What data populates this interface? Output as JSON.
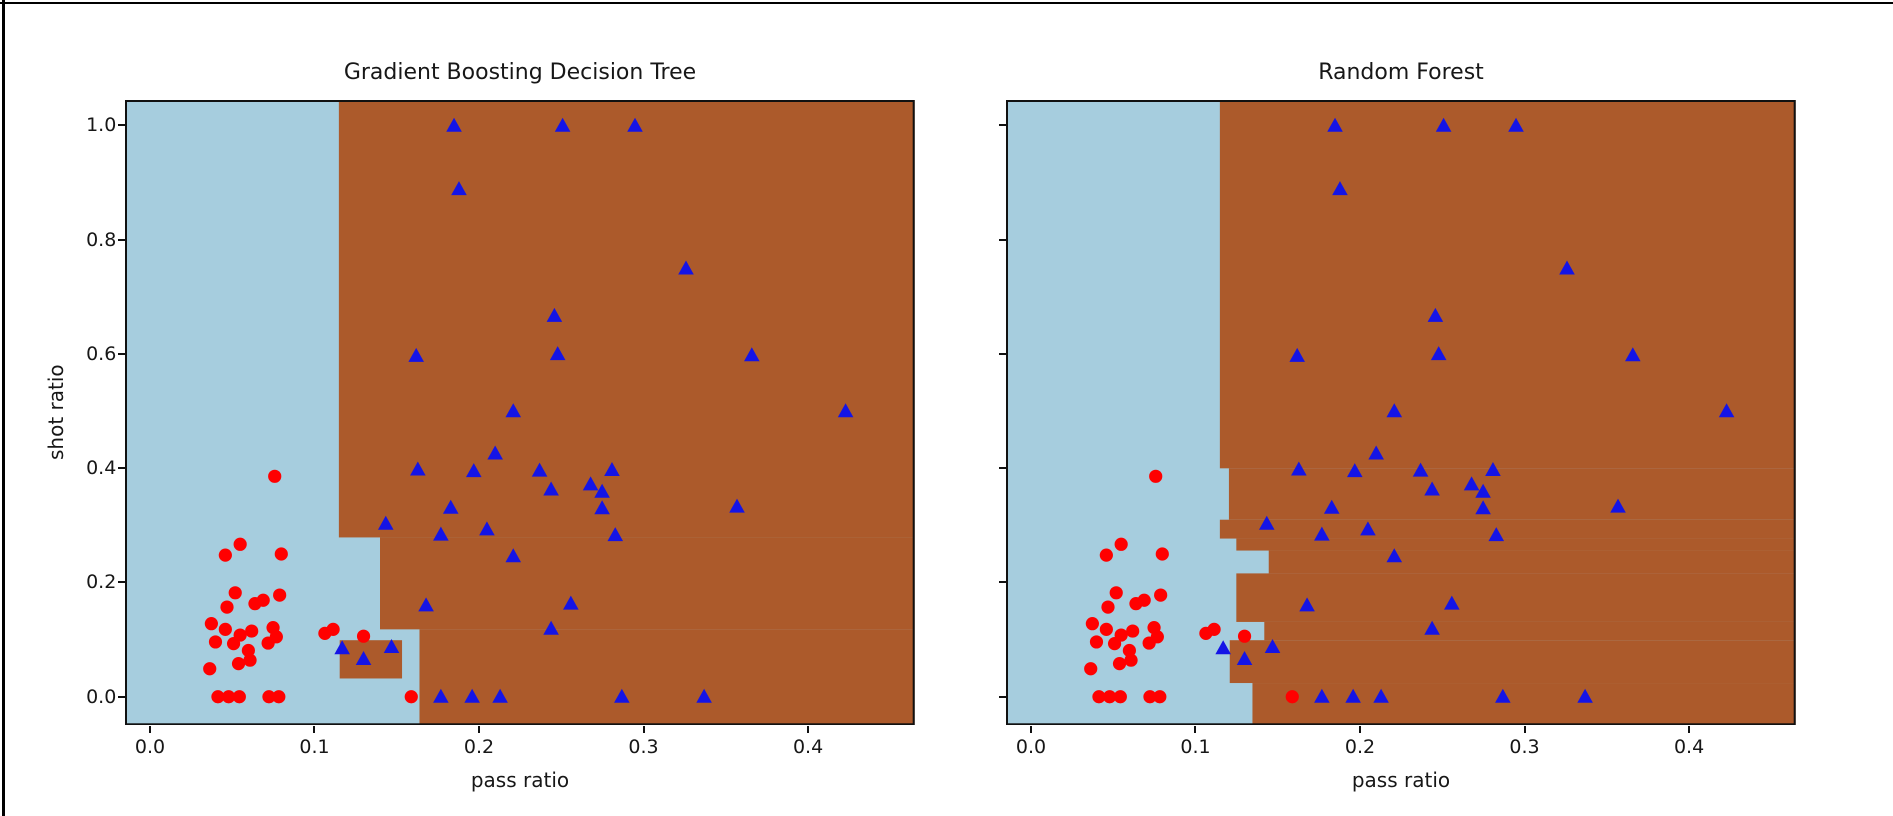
{
  "window": {
    "background": "#ffffff",
    "border_color": "#000000"
  },
  "palette": {
    "region_class0": "#A6CDDE",
    "region_class1": "#AC5A2B",
    "marker_red": "#FF0000",
    "marker_blue": "#1414E6",
    "spine": "#111111",
    "text": "#171717"
  },
  "chart_data": [
    {
      "type": "scatter",
      "title": "Gradient Boosting Decision Tree",
      "xlabel": "pass ratio",
      "ylabel": "shot ratio",
      "xlim": [
        -0.015,
        0.465
      ],
      "ylim": [
        -0.05,
        1.045
      ],
      "grid": false,
      "legend": null,
      "x_tick_values": [
        0.0,
        0.1,
        0.2,
        0.3,
        0.4
      ],
      "x_tick_labels": [
        "0.0",
        "0.1",
        "0.2",
        "0.3",
        "0.4"
      ],
      "y_tick_values": [
        0.0,
        0.2,
        0.4,
        0.6,
        0.8,
        1.0
      ],
      "y_tick_labels": [
        "0.0",
        "0.2",
        "0.4",
        "0.6",
        "0.8",
        "1.0"
      ],
      "show_y_tick_labels": true,
      "background_region_color": "#A6CDDE",
      "positive_region_color": "#AC5A2B",
      "positive_region_rects": [
        {
          "x0": 0.115,
          "y0": 0.279,
          "x1": 0.465,
          "y1": 1.045
        },
        {
          "x0": 0.14,
          "y0": 0.118,
          "x1": 0.465,
          "y1": 0.279
        },
        {
          "x0": 0.164,
          "y0": -0.05,
          "x1": 0.465,
          "y1": 0.118
        },
        {
          "x0": 0.1155,
          "y0": 0.032,
          "x1": 0.1534,
          "y1": 0.099
        }
      ],
      "series": [
        {
          "name": "class-0-red-circles",
          "marker": "circle",
          "color": "#FF0000",
          "points": [
            [
              0.076,
              0.386
            ],
            [
              0.055,
              0.267
            ],
            [
              0.046,
              0.248
            ],
            [
              0.08,
              0.25
            ],
            [
              0.052,
              0.182
            ],
            [
              0.079,
              0.178
            ],
            [
              0.047,
              0.157
            ],
            [
              0.064,
              0.163
            ],
            [
              0.069,
              0.169
            ],
            [
              0.0375,
              0.128
            ],
            [
              0.046,
              0.118
            ],
            [
              0.055,
              0.108
            ],
            [
              0.062,
              0.115
            ],
            [
              0.075,
              0.121
            ],
            [
              0.077,
              0.105
            ],
            [
              0.072,
              0.094
            ],
            [
              0.04,
              0.096
            ],
            [
              0.051,
              0.093
            ],
            [
              0.06,
              0.081
            ],
            [
              0.0365,
              0.049
            ],
            [
              0.054,
              0.058
            ],
            [
              0.061,
              0.064
            ],
            [
              0.1065,
              0.111
            ],
            [
              0.1115,
              0.118
            ],
            [
              0.13,
              0.106
            ],
            [
              0.159,
              0.0
            ],
            [
              0.0415,
              0.0
            ],
            [
              0.048,
              0.0
            ],
            [
              0.0545,
              0.0
            ],
            [
              0.0725,
              0.0
            ],
            [
              0.0785,
              0.0
            ]
          ]
        },
        {
          "name": "class-1-blue-triangles",
          "marker": "triangle-up",
          "color": "#1414E6",
          "points": [
            [
              0.185,
              1.0
            ],
            [
              0.251,
              1.0
            ],
            [
              0.295,
              1.0
            ],
            [
              0.188,
              0.889
            ],
            [
              0.326,
              0.75
            ],
            [
              0.246,
              0.667
            ],
            [
              0.162,
              0.597
            ],
            [
              0.248,
              0.6
            ],
            [
              0.366,
              0.598
            ],
            [
              0.221,
              0.5
            ],
            [
              0.423,
              0.5
            ],
            [
              0.21,
              0.426
            ],
            [
              0.163,
              0.398
            ],
            [
              0.197,
              0.395
            ],
            [
              0.237,
              0.396
            ],
            [
              0.281,
              0.397
            ],
            [
              0.268,
              0.372
            ],
            [
              0.275,
              0.359
            ],
            [
              0.275,
              0.33
            ],
            [
              0.283,
              0.283
            ],
            [
              0.244,
              0.363
            ],
            [
              0.357,
              0.333
            ],
            [
              0.1435,
              0.303
            ],
            [
              0.183,
              0.331
            ],
            [
              0.177,
              0.284
            ],
            [
              0.205,
              0.293
            ],
            [
              0.221,
              0.246
            ],
            [
              0.256,
              0.163
            ],
            [
              0.244,
              0.119
            ],
            [
              0.168,
              0.16
            ],
            [
              0.117,
              0.085
            ],
            [
              0.13,
              0.066
            ],
            [
              0.147,
              0.087
            ],
            [
              0.177,
              0.0
            ],
            [
              0.196,
              0.0
            ],
            [
              0.213,
              0.0
            ],
            [
              0.287,
              0.0
            ],
            [
              0.337,
              0.0
            ]
          ]
        }
      ]
    },
    {
      "type": "scatter",
      "title": "Random Forest",
      "xlabel": "pass ratio",
      "ylabel": "",
      "xlim": [
        -0.015,
        0.465
      ],
      "ylim": [
        -0.05,
        1.045
      ],
      "grid": false,
      "legend": null,
      "x_tick_values": [
        0.0,
        0.1,
        0.2,
        0.3,
        0.4
      ],
      "x_tick_labels": [
        "0.0",
        "0.1",
        "0.2",
        "0.3",
        "0.4"
      ],
      "y_tick_values": [
        0.0,
        0.2,
        0.4,
        0.6,
        0.8,
        1.0
      ],
      "y_tick_labels": [],
      "show_y_tick_labels": false,
      "background_region_color": "#A6CDDE",
      "positive_region_color": "#AC5A2B",
      "positive_region_rects": [
        {
          "x0": 0.115,
          "y0": 0.4,
          "x1": 0.465,
          "y1": 1.045
        },
        {
          "x0": 0.1205,
          "y0": 0.31,
          "x1": 0.465,
          "y1": 0.4
        },
        {
          "x0": 0.115,
          "y0": 0.277,
          "x1": 0.465,
          "y1": 0.31
        },
        {
          "x0": 0.125,
          "y0": 0.256,
          "x1": 0.465,
          "y1": 0.277
        },
        {
          "x0": 0.1447,
          "y0": 0.216,
          "x1": 0.465,
          "y1": 0.256
        },
        {
          "x0": 0.125,
          "y0": 0.131,
          "x1": 0.465,
          "y1": 0.216
        },
        {
          "x0": 0.142,
          "y0": 0.099,
          "x1": 0.465,
          "y1": 0.131
        },
        {
          "x0": 0.121,
          "y0": 0.024,
          "x1": 0.465,
          "y1": 0.099
        },
        {
          "x0": 0.1348,
          "y0": -0.05,
          "x1": 0.465,
          "y1": 0.024
        }
      ],
      "series": [
        {
          "name": "class-0-red-circles",
          "marker": "circle",
          "color": "#FF0000",
          "points": [
            [
              0.076,
              0.386
            ],
            [
              0.055,
              0.267
            ],
            [
              0.046,
              0.248
            ],
            [
              0.08,
              0.25
            ],
            [
              0.052,
              0.182
            ],
            [
              0.079,
              0.178
            ],
            [
              0.047,
              0.157
            ],
            [
              0.064,
              0.163
            ],
            [
              0.069,
              0.169
            ],
            [
              0.0375,
              0.128
            ],
            [
              0.046,
              0.118
            ],
            [
              0.055,
              0.108
            ],
            [
              0.062,
              0.115
            ],
            [
              0.075,
              0.121
            ],
            [
              0.077,
              0.105
            ],
            [
              0.072,
              0.094
            ],
            [
              0.04,
              0.096
            ],
            [
              0.051,
              0.093
            ],
            [
              0.06,
              0.081
            ],
            [
              0.0365,
              0.049
            ],
            [
              0.054,
              0.058
            ],
            [
              0.061,
              0.064
            ],
            [
              0.1065,
              0.111
            ],
            [
              0.1115,
              0.118
            ],
            [
              0.13,
              0.106
            ],
            [
              0.159,
              0.0
            ],
            [
              0.0415,
              0.0
            ],
            [
              0.048,
              0.0
            ],
            [
              0.0545,
              0.0
            ],
            [
              0.0725,
              0.0
            ],
            [
              0.0785,
              0.0
            ]
          ]
        },
        {
          "name": "class-1-blue-triangles",
          "marker": "triangle-up",
          "color": "#1414E6",
          "points": [
            [
              0.185,
              1.0
            ],
            [
              0.251,
              1.0
            ],
            [
              0.295,
              1.0
            ],
            [
              0.188,
              0.889
            ],
            [
              0.326,
              0.75
            ],
            [
              0.246,
              0.667
            ],
            [
              0.162,
              0.597
            ],
            [
              0.248,
              0.6
            ],
            [
              0.366,
              0.598
            ],
            [
              0.221,
              0.5
            ],
            [
              0.423,
              0.5
            ],
            [
              0.21,
              0.426
            ],
            [
              0.163,
              0.398
            ],
            [
              0.197,
              0.395
            ],
            [
              0.237,
              0.396
            ],
            [
              0.281,
              0.397
            ],
            [
              0.268,
              0.372
            ],
            [
              0.275,
              0.359
            ],
            [
              0.275,
              0.33
            ],
            [
              0.283,
              0.283
            ],
            [
              0.244,
              0.363
            ],
            [
              0.357,
              0.333
            ],
            [
              0.1435,
              0.303
            ],
            [
              0.183,
              0.331
            ],
            [
              0.177,
              0.284
            ],
            [
              0.205,
              0.293
            ],
            [
              0.221,
              0.246
            ],
            [
              0.256,
              0.163
            ],
            [
              0.244,
              0.119
            ],
            [
              0.168,
              0.16
            ],
            [
              0.117,
              0.085
            ],
            [
              0.13,
              0.066
            ],
            [
              0.147,
              0.087
            ],
            [
              0.177,
              0.0
            ],
            [
              0.196,
              0.0
            ],
            [
              0.213,
              0.0
            ],
            [
              0.287,
              0.0
            ],
            [
              0.337,
              0.0
            ]
          ]
        }
      ]
    }
  ]
}
